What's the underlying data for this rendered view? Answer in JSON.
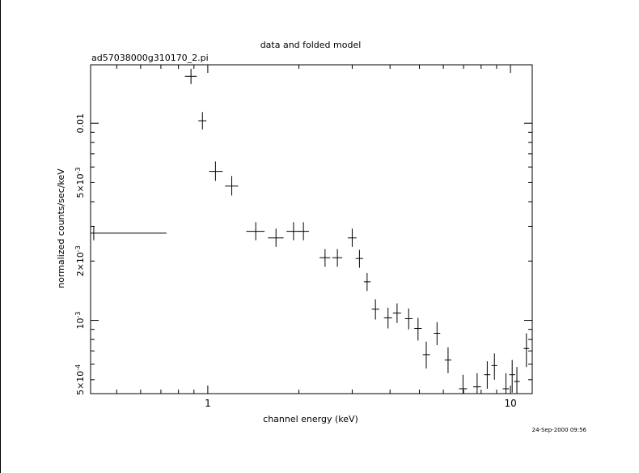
{
  "chart_data": {
    "type": "scatter",
    "title": "data and folded model",
    "subtitle": "ad57038000g310170_2.pi",
    "xlabel": "channel energy (keV)",
    "ylabel": "normalized counts/sec/keV",
    "x_scale": "log",
    "y_scale": "log",
    "xlim": [
      0.41,
      11.8
    ],
    "ylim": [
      0.000425,
      0.0198
    ],
    "x_ticks": [
      {
        "value": 1,
        "label": "1"
      },
      {
        "value": 10,
        "label": "10"
      }
    ],
    "y_ticks": [
      {
        "value": 0.01,
        "label": "0.01"
      },
      {
        "value": 0.005,
        "label": "5×10^-3"
      },
      {
        "value": 0.002,
        "label": "2×10^-3"
      },
      {
        "value": 0.001,
        "label": "10^-3"
      },
      {
        "value": 0.0005,
        "label": "5×10^-4"
      }
    ],
    "points": [
      {
        "x": 0.42,
        "xlo": 0.41,
        "xhi": 0.73,
        "y": 0.00277,
        "ylo": 0.00255,
        "yhi": 0.003
      },
      {
        "x": 0.88,
        "xlo": 0.84,
        "xhi": 0.92,
        "y": 0.0173,
        "ylo": 0.0158,
        "yhi": 0.0189
      },
      {
        "x": 0.96,
        "xlo": 0.93,
        "xhi": 0.99,
        "y": 0.0103,
        "ylo": 0.0093,
        "yhi": 0.0114
      },
      {
        "x": 1.06,
        "xlo": 1.01,
        "xhi": 1.12,
        "y": 0.0057,
        "ylo": 0.0051,
        "yhi": 0.0064
      },
      {
        "x": 1.2,
        "xlo": 1.14,
        "xhi": 1.26,
        "y": 0.0048,
        "ylo": 0.0043,
        "yhi": 0.0054
      },
      {
        "x": 1.44,
        "xlo": 1.34,
        "xhi": 1.54,
        "y": 0.00283,
        "ylo": 0.00255,
        "yhi": 0.00315
      },
      {
        "x": 1.68,
        "xlo": 1.58,
        "xhi": 1.78,
        "y": 0.00262,
        "ylo": 0.00236,
        "yhi": 0.00292
      },
      {
        "x": 1.92,
        "xlo": 1.82,
        "xhi": 2.02,
        "y": 0.00283,
        "ylo": 0.00255,
        "yhi": 0.00315
      },
      {
        "x": 2.07,
        "xlo": 2.0,
        "xhi": 2.16,
        "y": 0.00283,
        "ylo": 0.00255,
        "yhi": 0.00315
      },
      {
        "x": 2.44,
        "xlo": 2.34,
        "xhi": 2.54,
        "y": 0.00208,
        "ylo": 0.00187,
        "yhi": 0.0023
      },
      {
        "x": 2.68,
        "xlo": 2.58,
        "xhi": 2.78,
        "y": 0.00208,
        "ylo": 0.00187,
        "yhi": 0.0023
      },
      {
        "x": 3.0,
        "xlo": 2.9,
        "xhi": 3.1,
        "y": 0.00262,
        "ylo": 0.00236,
        "yhi": 0.00292
      },
      {
        "x": 3.17,
        "xlo": 3.08,
        "xhi": 3.26,
        "y": 0.00206,
        "ylo": 0.00185,
        "yhi": 0.00228
      },
      {
        "x": 3.36,
        "xlo": 3.28,
        "xhi": 3.45,
        "y": 0.00157,
        "ylo": 0.00141,
        "yhi": 0.00174
      },
      {
        "x": 3.58,
        "xlo": 3.48,
        "xhi": 3.69,
        "y": 0.00114,
        "ylo": 0.00101,
        "yhi": 0.00128
      },
      {
        "x": 3.94,
        "xlo": 3.82,
        "xhi": 4.06,
        "y": 0.00103,
        "ylo": 0.00091,
        "yhi": 0.00116
      },
      {
        "x": 4.22,
        "xlo": 4.09,
        "xhi": 4.35,
        "y": 0.00109,
        "ylo": 0.00097,
        "yhi": 0.00122
      },
      {
        "x": 4.61,
        "xlo": 4.48,
        "xhi": 4.75,
        "y": 0.00102,
        "ylo": 0.0009,
        "yhi": 0.00115
      },
      {
        "x": 4.95,
        "xlo": 4.81,
        "xhi": 5.09,
        "y": 0.00091,
        "ylo": 0.00079,
        "yhi": 0.00103
      },
      {
        "x": 5.27,
        "xlo": 5.13,
        "xhi": 5.42,
        "y": 0.00067,
        "ylo": 0.00057,
        "yhi": 0.00078
      },
      {
        "x": 5.72,
        "xlo": 5.58,
        "xhi": 5.86,
        "y": 0.00086,
        "ylo": 0.00075,
        "yhi": 0.00098
      },
      {
        "x": 6.22,
        "xlo": 6.06,
        "xhi": 6.38,
        "y": 0.00063,
        "ylo": 0.00054,
        "yhi": 0.00073
      },
      {
        "x": 6.97,
        "xlo": 6.76,
        "xhi": 7.19,
        "y": 0.00045,
        "ylo": 0.00038,
        "yhi": 0.00053
      },
      {
        "x": 7.76,
        "xlo": 7.53,
        "xhi": 7.99,
        "y": 0.00046,
        "ylo": 0.00039,
        "yhi": 0.00054
      },
      {
        "x": 8.38,
        "xlo": 8.18,
        "xhi": 8.58,
        "y": 0.00053,
        "ylo": 0.00045,
        "yhi": 0.00062
      },
      {
        "x": 8.85,
        "xlo": 8.65,
        "xhi": 9.05,
        "y": 0.00059,
        "ylo": 0.0005,
        "yhi": 0.00068
      },
      {
        "x": 9.66,
        "xlo": 9.42,
        "xhi": 9.9,
        "y": 0.00045,
        "ylo": 0.00038,
        "yhi": 0.00054
      },
      {
        "x": 10.13,
        "xlo": 9.9,
        "xhi": 10.36,
        "y": 0.00053,
        "ylo": 0.00043,
        "yhi": 0.00063
      },
      {
        "x": 10.5,
        "xlo": 10.27,
        "xhi": 10.74,
        "y": 0.00049,
        "ylo": 0.0004,
        "yhi": 0.00058
      },
      {
        "x": 11.29,
        "xlo": 11.05,
        "xhi": 11.53,
        "y": 0.00072,
        "ylo": 0.00058,
        "yhi": 0.00086
      }
    ],
    "grid": false,
    "legend": "none",
    "timestamp": "24-Sep-2000 09:56",
    "color": "#000000"
  }
}
